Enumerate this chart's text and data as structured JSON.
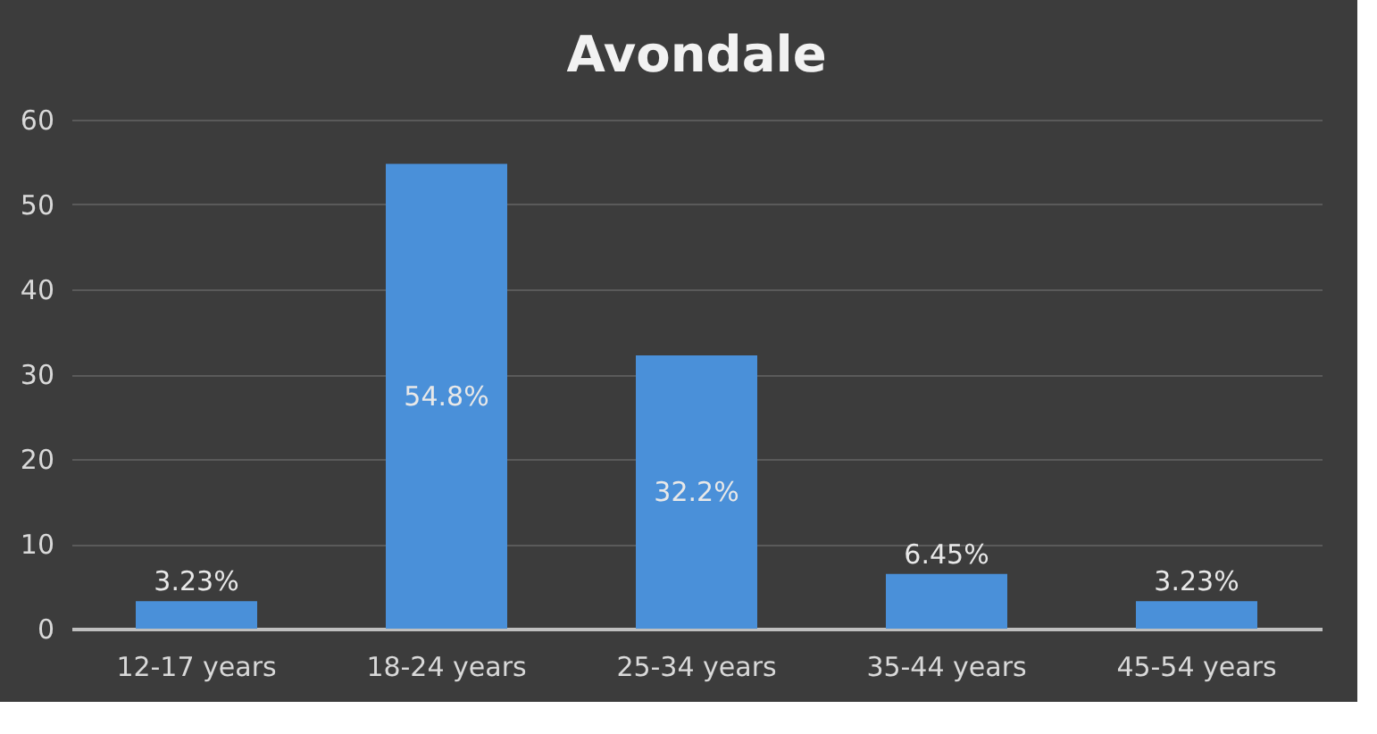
{
  "chart_data": {
    "type": "bar",
    "title": "Avondale",
    "categories": [
      "12-17 years",
      "18-24 years",
      "25-34 years",
      "35-44 years",
      "45-54 years"
    ],
    "values": [
      3.23,
      54.8,
      32.2,
      6.45,
      3.23
    ],
    "value_labels": [
      "3.23%",
      "54.8%",
      "32.2%",
      "6.45%",
      "3.23%"
    ],
    "color": "#4a90d9",
    "ylim": [
      0,
      60
    ],
    "yticks": [
      0,
      10,
      20,
      30,
      40,
      50,
      60
    ],
    "grid": "y"
  }
}
